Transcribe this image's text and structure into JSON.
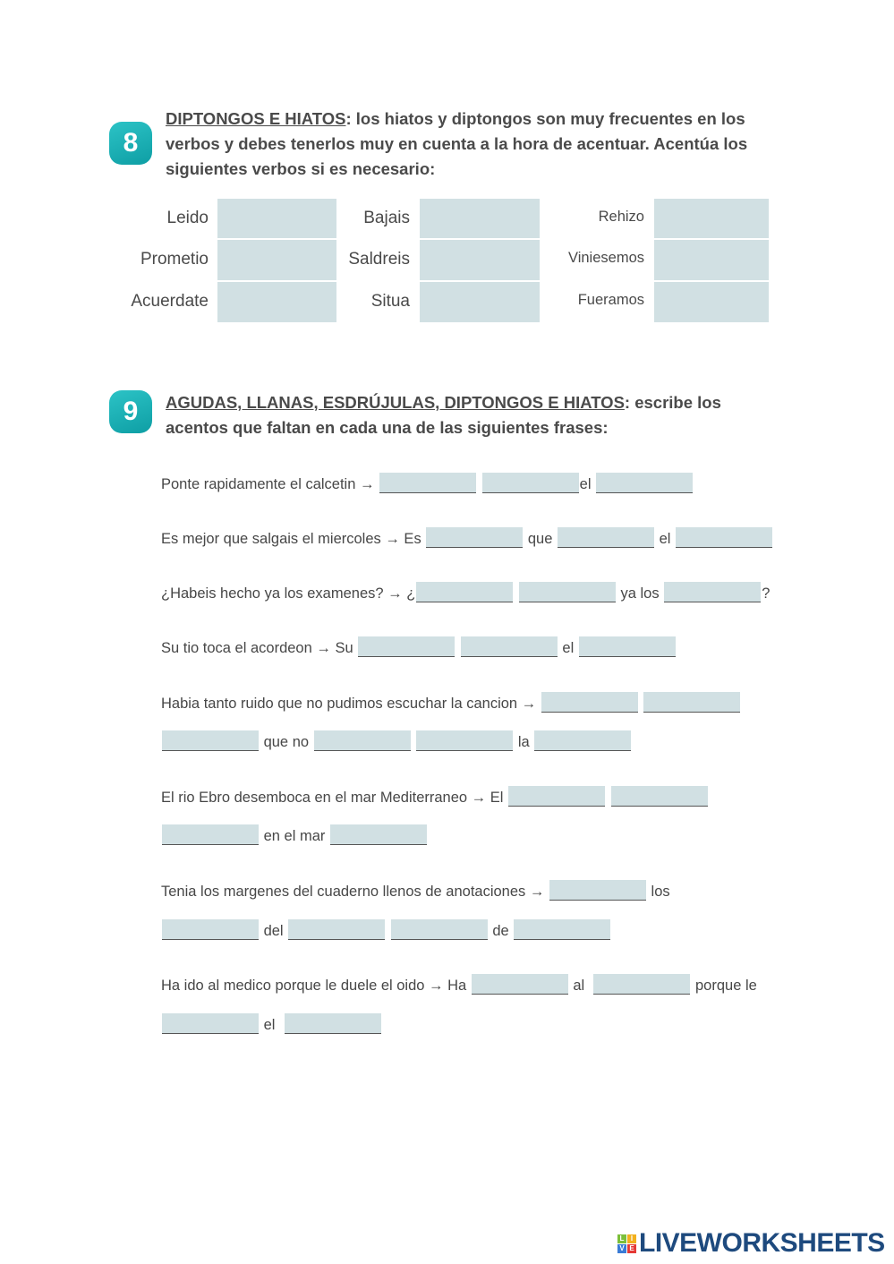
{
  "exercise8": {
    "number": "8",
    "title": "DIPTONGOS E HIATOS",
    "text": ": los hiatos y diptongos son muy frecuentes en los verbos y debes tenerlos muy en cuenta a la hora de acentuar. Acentúa los siguientes verbos si es necesario:",
    "columns": [
      [
        "Leido",
        "Prometio",
        "Acuerdate"
      ],
      [
        "Bajais",
        "Saldreis",
        "Situa"
      ],
      [
        "Rehizo",
        "Viniesemos",
        "Fueramos"
      ]
    ]
  },
  "exercise9": {
    "number": "9",
    "title": "AGUDAS, LLANAS, ESDRÚJULAS, DIPTONGOS E HIATOS",
    "text": ": escribe los acentos que faltan en cada una de las siguientes frases:",
    "lines": [
      [
        "Ponte rapidamente el calcetin → ",
        "_",
        " ",
        "_",
        "el ",
        "_"
      ],
      [
        "Es mejor que salgais el miercoles → Es ",
        "_",
        " que ",
        "_",
        " el ",
        "_"
      ],
      [
        "¿Habeis hecho ya los examenes? → ¿",
        "_",
        " ",
        "_",
        " ya los ",
        "_",
        "?"
      ],
      [
        "Su tio toca el acordeon → Su ",
        "_",
        " ",
        "_",
        " el ",
        "_"
      ],
      [
        "Habia tanto ruido que no pudimos escuchar la cancion → ",
        "_",
        " ",
        "_"
      ],
      [
        "_",
        " que no ",
        "_",
        " ",
        "_",
        " la ",
        "_"
      ],
      [
        "El rio Ebro desemboca en el mar Mediterraneo → El ",
        "_",
        " ",
        "_"
      ],
      [
        "_",
        " en el mar ",
        "_"
      ],
      [
        "Tenia los margenes del cuaderno llenos de anotaciones → ",
        "_",
        " los"
      ],
      [
        "_",
        " del ",
        "_",
        " ",
        "_",
        " de ",
        "_"
      ],
      [
        "Ha ido al medico porque le duele el oido → Ha ",
        "_",
        " al  ",
        "_",
        " porque le"
      ],
      [
        "_",
        " el  ",
        "_"
      ]
    ]
  },
  "logo": {
    "text": "LIVEWORKSHEETS",
    "letters": [
      "L",
      "I",
      "V",
      "E"
    ]
  },
  "colors": {
    "accent": "#1aabb0",
    "answer_box": "#d1e0e3",
    "logo": "#1e4a7e"
  }
}
